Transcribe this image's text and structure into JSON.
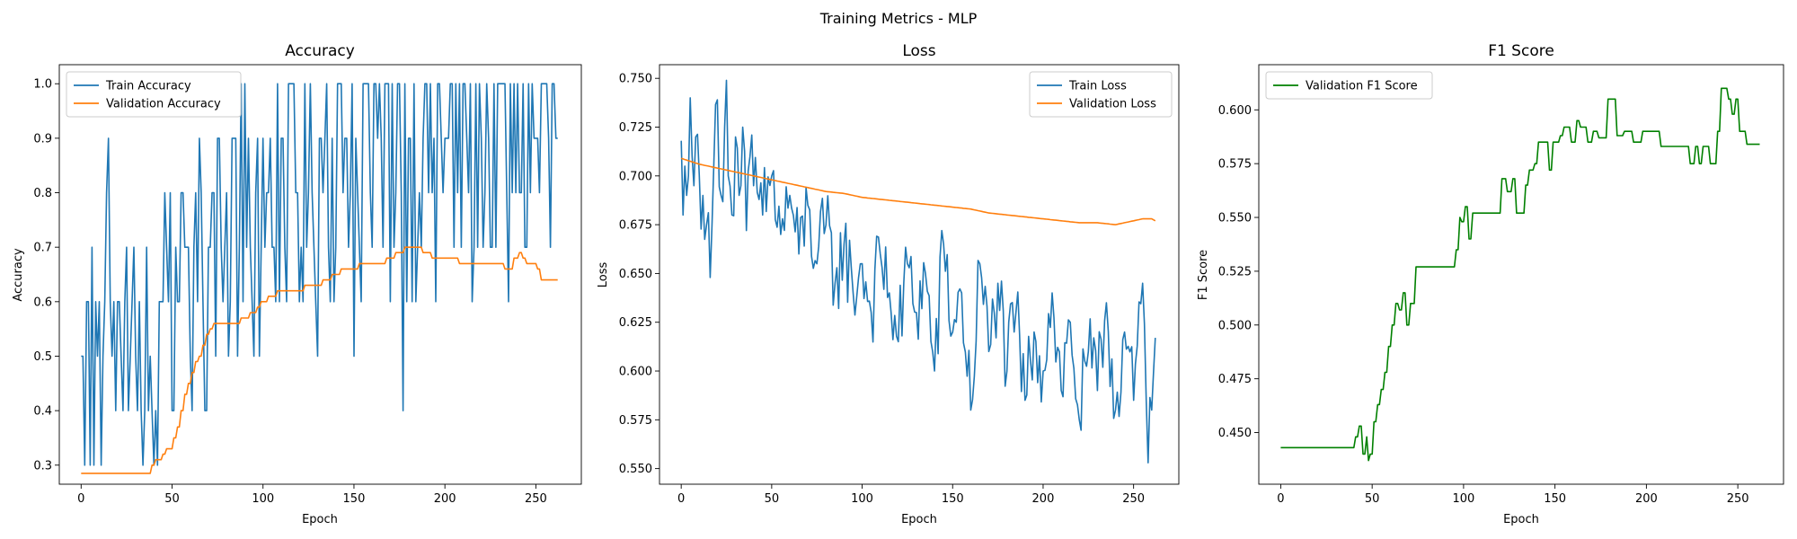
{
  "figure": {
    "suptitle": "Training Metrics - MLP"
  },
  "colors": {
    "train": "#1f77b4",
    "validation": "#ff7f0e",
    "f1": "#008000"
  },
  "chart_data": [
    {
      "type": "line",
      "title": "Accuracy",
      "xlabel": "Epoch",
      "ylabel": "Accuracy",
      "xlim": [
        -12,
        275
      ],
      "ylim": [
        0.265,
        1.035
      ],
      "xticks": [
        0,
        50,
        100,
        150,
        200,
        250
      ],
      "yticks": [
        0.3,
        0.4,
        0.5,
        0.6,
        0.7,
        0.8,
        0.9,
        1.0
      ],
      "ytick_labels": [
        "0.3",
        "0.4",
        "0.5",
        "0.6",
        "0.7",
        "0.8",
        "0.9",
        "1.0"
      ],
      "legend_loc": "upper-left",
      "series": [
        {
          "name": "Train Accuracy",
          "color": "#1f77b4",
          "kind": "train_acc",
          "x": [
            0,
            1,
            2,
            3,
            4,
            5,
            6,
            7,
            8,
            9,
            10,
            11,
            12,
            13,
            14,
            15,
            16,
            17,
            18,
            19,
            20,
            22,
            24,
            26,
            28,
            30,
            32,
            34,
            36,
            38,
            39,
            40,
            41,
            42,
            43,
            44,
            46,
            48,
            50,
            52,
            54,
            56,
            58,
            60,
            62,
            64,
            66,
            68,
            70,
            72,
            74,
            76,
            78,
            80,
            82,
            84,
            86,
            88,
            89,
            90,
            91,
            92,
            94,
            96,
            98,
            100,
            105,
            110,
            115,
            120,
            125,
            130,
            135,
            140,
            145,
            150,
            152,
            154,
            156,
            160,
            165,
            170,
            175,
            177,
            180,
            185,
            190,
            195,
            200,
            205,
            210,
            215,
            220,
            225,
            230,
            235,
            240,
            245,
            250,
            255,
            258,
            260,
            262
          ],
          "y": [
            0.5,
            0.5,
            0.3,
            0.6,
            0.6,
            0.3,
            0.7,
            0.3,
            0.6,
            0.5,
            0.6,
            0.3,
            0.5,
            0.6,
            0.8,
            0.9,
            0.6,
            0.5,
            0.6,
            0.4,
            0.6,
            0.5,
            0.6,
            0.4,
            0.6,
            0.5,
            0.6,
            0.3,
            0.7,
            0.5,
            0.4,
            0.3,
            0.4,
            0.3,
            0.6,
            0.6,
            0.8,
            0.6,
            0.4,
            0.7,
            0.6,
            0.8,
            0.7,
            0.5,
            0.7,
            0.6,
            0.8,
            0.4,
            0.7,
            0.8,
            0.5,
            0.9,
            0.6,
            0.8,
            0.6,
            0.9,
            0.5,
            1.0,
            0.6,
            1.0,
            0.7,
            0.9,
            0.6,
            0.8,
            0.5,
            0.9,
            0.7,
            0.9,
            1.0,
            0.6,
            0.8,
            0.5,
            1.0,
            0.7,
            0.9,
            0.5,
            0.8,
            0.6,
            1.0,
            0.7,
            0.9,
            0.6,
            1.0,
            0.4,
            0.9,
            0.7,
            1.0,
            0.6,
            0.9,
            0.7,
            1.0,
            0.6,
            0.9,
            0.7,
            1.0,
            0.6,
            1.0,
            0.7,
            0.9,
            1.0,
            0.7,
            1.0,
            0.9
          ]
        },
        {
          "name": "Validation Accuracy",
          "color": "#ff7f0e",
          "kind": "val_acc",
          "x": [
            0,
            10,
            20,
            30,
            38,
            40,
            42,
            44,
            46,
            48,
            50,
            52,
            54,
            56,
            58,
            60,
            62,
            64,
            66,
            68,
            70,
            72,
            74,
            76,
            78,
            80,
            85,
            90,
            95,
            98,
            100,
            105,
            110,
            115,
            120,
            125,
            130,
            135,
            140,
            145,
            150,
            155,
            160,
            165,
            170,
            175,
            180,
            185,
            190,
            195,
            200,
            205,
            210,
            215,
            220,
            225,
            230,
            235,
            240,
            242,
            244,
            246,
            248,
            250,
            252,
            254,
            256,
            262
          ],
          "y": [
            0.285,
            0.285,
            0.285,
            0.285,
            0.285,
            0.3,
            0.31,
            0.31,
            0.32,
            0.33,
            0.33,
            0.35,
            0.37,
            0.4,
            0.43,
            0.45,
            0.47,
            0.49,
            0.5,
            0.52,
            0.54,
            0.55,
            0.56,
            0.56,
            0.56,
            0.56,
            0.56,
            0.57,
            0.58,
            0.59,
            0.6,
            0.61,
            0.62,
            0.62,
            0.62,
            0.63,
            0.63,
            0.64,
            0.65,
            0.66,
            0.66,
            0.67,
            0.67,
            0.67,
            0.68,
            0.69,
            0.7,
            0.7,
            0.69,
            0.68,
            0.68,
            0.68,
            0.67,
            0.67,
            0.67,
            0.67,
            0.67,
            0.66,
            0.68,
            0.69,
            0.68,
            0.67,
            0.67,
            0.67,
            0.66,
            0.64,
            0.64,
            0.64
          ]
        }
      ]
    },
    {
      "type": "line",
      "title": "Loss",
      "xlabel": "Epoch",
      "ylabel": "Loss",
      "xlim": [
        -12,
        275
      ],
      "ylim": [
        0.542,
        0.757
      ],
      "xticks": [
        0,
        50,
        100,
        150,
        200,
        250
      ],
      "yticks": [
        0.55,
        0.575,
        0.6,
        0.625,
        0.65,
        0.675,
        0.7,
        0.725,
        0.75
      ],
      "ytick_labels": [
        "0.550",
        "0.575",
        "0.600",
        "0.625",
        "0.650",
        "0.675",
        "0.700",
        "0.725",
        "0.750"
      ],
      "legend_loc": "upper-right",
      "series": [
        {
          "name": "Train Loss",
          "color": "#1f77b4",
          "kind": "train_loss",
          "x": [
            0,
            1,
            2,
            3,
            4,
            5,
            6,
            7,
            8,
            10,
            12,
            14,
            16,
            18,
            20,
            22,
            24,
            25,
            26,
            28,
            30,
            32,
            34,
            36,
            38,
            40,
            45,
            50,
            55,
            60,
            65,
            70,
            75,
            80,
            85,
            90,
            95,
            100,
            105,
            110,
            115,
            120,
            125,
            130,
            135,
            140,
            145,
            150,
            155,
            160,
            165,
            170,
            175,
            180,
            185,
            190,
            195,
            200,
            205,
            210,
            215,
            220,
            225,
            230,
            235,
            240,
            245,
            250,
            255,
            258,
            260,
            262
          ],
          "y": [
            0.718,
            0.68,
            0.705,
            0.69,
            0.7,
            0.74,
            0.71,
            0.695,
            0.72,
            0.7,
            0.69,
            0.675,
            0.648,
            0.705,
            0.739,
            0.69,
            0.725,
            0.749,
            0.7,
            0.68,
            0.72,
            0.69,
            0.725,
            0.672,
            0.71,
            0.695,
            0.68,
            0.7,
            0.67,
            0.69,
            0.66,
            0.685,
            0.655,
            0.675,
            0.645,
            0.665,
            0.64,
            0.655,
            0.63,
            0.66,
            0.64,
            0.615,
            0.655,
            0.63,
            0.65,
            0.6,
            0.665,
            0.62,
            0.64,
            0.58,
            0.655,
            0.61,
            0.645,
            0.6,
            0.63,
            0.585,
            0.62,
            0.6,
            0.64,
            0.59,
            0.625,
            0.575,
            0.61,
            0.59,
            0.635,
            0.58,
            0.62,
            0.585,
            0.645,
            0.553,
            0.58,
            0.617
          ]
        },
        {
          "name": "Validation Loss",
          "color": "#ff7f0e",
          "kind": "val_loss",
          "x": [
            0,
            10,
            20,
            30,
            40,
            50,
            60,
            70,
            80,
            90,
            100,
            110,
            120,
            130,
            140,
            150,
            160,
            170,
            180,
            190,
            200,
            210,
            220,
            230,
            240,
            250,
            255,
            260,
            262
          ],
          "y": [
            0.709,
            0.706,
            0.704,
            0.702,
            0.7,
            0.698,
            0.696,
            0.694,
            0.692,
            0.691,
            0.689,
            0.688,
            0.687,
            0.686,
            0.685,
            0.684,
            0.683,
            0.681,
            0.68,
            0.679,
            0.678,
            0.677,
            0.676,
            0.676,
            0.675,
            0.677,
            0.678,
            0.678,
            0.677
          ]
        }
      ]
    },
    {
      "type": "line",
      "title": "F1 Score",
      "xlabel": "Epoch",
      "ylabel": "F1 Score",
      "xlim": [
        -12,
        275
      ],
      "ylim": [
        0.426,
        0.621
      ],
      "xticks": [
        0,
        50,
        100,
        150,
        200,
        250
      ],
      "yticks": [
        0.45,
        0.475,
        0.5,
        0.525,
        0.55,
        0.575,
        0.6
      ],
      "ytick_labels": [
        "0.450",
        "0.475",
        "0.500",
        "0.525",
        "0.550",
        "0.575",
        "0.600"
      ],
      "legend_loc": "upper-left",
      "series": [
        {
          "name": "Validation F1 Score",
          "color": "#008000",
          "kind": "val_f1",
          "x": [
            0,
            20,
            40,
            42,
            44,
            46,
            47,
            48,
            49,
            50,
            52,
            54,
            56,
            58,
            60,
            62,
            64,
            66,
            68,
            70,
            72,
            75,
            80,
            85,
            90,
            95,
            97,
            98,
            100,
            102,
            104,
            106,
            110,
            115,
            120,
            122,
            125,
            128,
            130,
            132,
            135,
            137,
            140,
            142,
            145,
            148,
            150,
            152,
            154,
            156,
            158,
            160,
            163,
            165,
            170,
            172,
            175,
            178,
            180,
            182,
            185,
            190,
            195,
            200,
            205,
            210,
            215,
            220,
            222,
            225,
            228,
            230,
            232,
            234,
            236,
            238,
            240,
            242,
            244,
            246,
            248,
            250,
            252,
            254,
            256,
            258,
            262
          ],
          "y": [
            0.443,
            0.443,
            0.443,
            0.448,
            0.453,
            0.44,
            0.448,
            0.437,
            0.44,
            0.44,
            0.455,
            0.463,
            0.47,
            0.478,
            0.49,
            0.5,
            0.51,
            0.507,
            0.515,
            0.5,
            0.51,
            0.527,
            0.527,
            0.527,
            0.527,
            0.527,
            0.535,
            0.55,
            0.548,
            0.555,
            0.54,
            0.552,
            0.552,
            0.552,
            0.552,
            0.568,
            0.562,
            0.568,
            0.552,
            0.552,
            0.565,
            0.572,
            0.575,
            0.585,
            0.585,
            0.572,
            0.585,
            0.585,
            0.588,
            0.592,
            0.592,
            0.585,
            0.595,
            0.592,
            0.585,
            0.59,
            0.587,
            0.587,
            0.605,
            0.605,
            0.588,
            0.59,
            0.585,
            0.59,
            0.59,
            0.583,
            0.583,
            0.583,
            0.583,
            0.575,
            0.583,
            0.575,
            0.583,
            0.583,
            0.575,
            0.575,
            0.59,
            0.61,
            0.61,
            0.605,
            0.598,
            0.605,
            0.59,
            0.59,
            0.584,
            0.584,
            0.584
          ]
        }
      ]
    }
  ]
}
